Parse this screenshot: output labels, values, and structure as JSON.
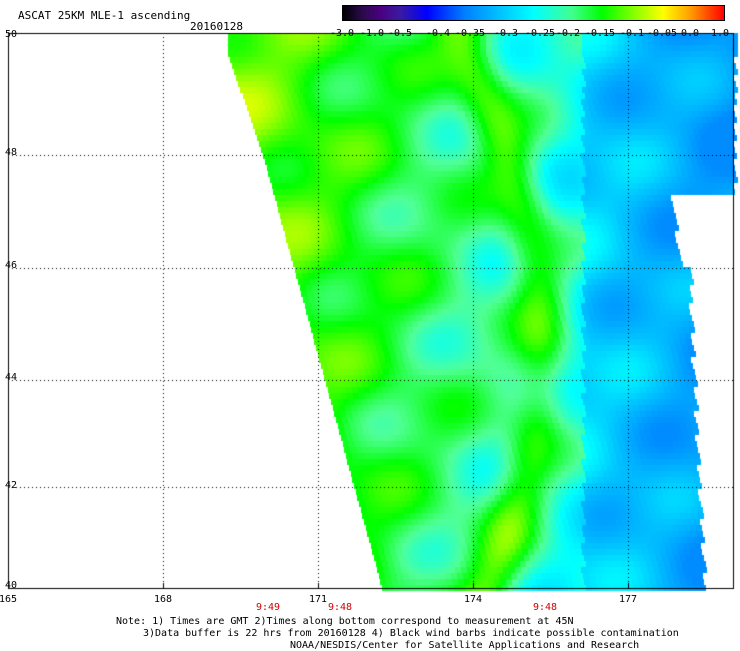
{
  "header": {
    "title": "ASCAT 25KM MLE-1 ascending",
    "date": "20160128"
  },
  "colorbar": {
    "labels": [
      "-3.0",
      "-1.0",
      "-0.5",
      "-0.4",
      "-0.35",
      "-0.3",
      "-0.25",
      "-0.2",
      "-0.15",
      "-0.1",
      "-0.05",
      "0.0",
      "1.0"
    ]
  },
  "axes": {
    "lat_labels": [
      "50",
      "48",
      "46",
      "44",
      "42",
      "40"
    ],
    "lon_labels": [
      "165",
      "168",
      "171",
      "174",
      "177"
    ],
    "times": [
      "9:49",
      "9:48",
      "9:48"
    ]
  },
  "notes": {
    "line1": "Note: 1) Times are GMT 2)Times along bottom correspond to measurement at 45N",
    "line2": "3)Data buffer is 22 hrs from 20160128 4) Black wind barbs indicate possible contamination",
    "line3": "NOAA/NESDIS/Center for Satellite Applications and Research"
  }
}
